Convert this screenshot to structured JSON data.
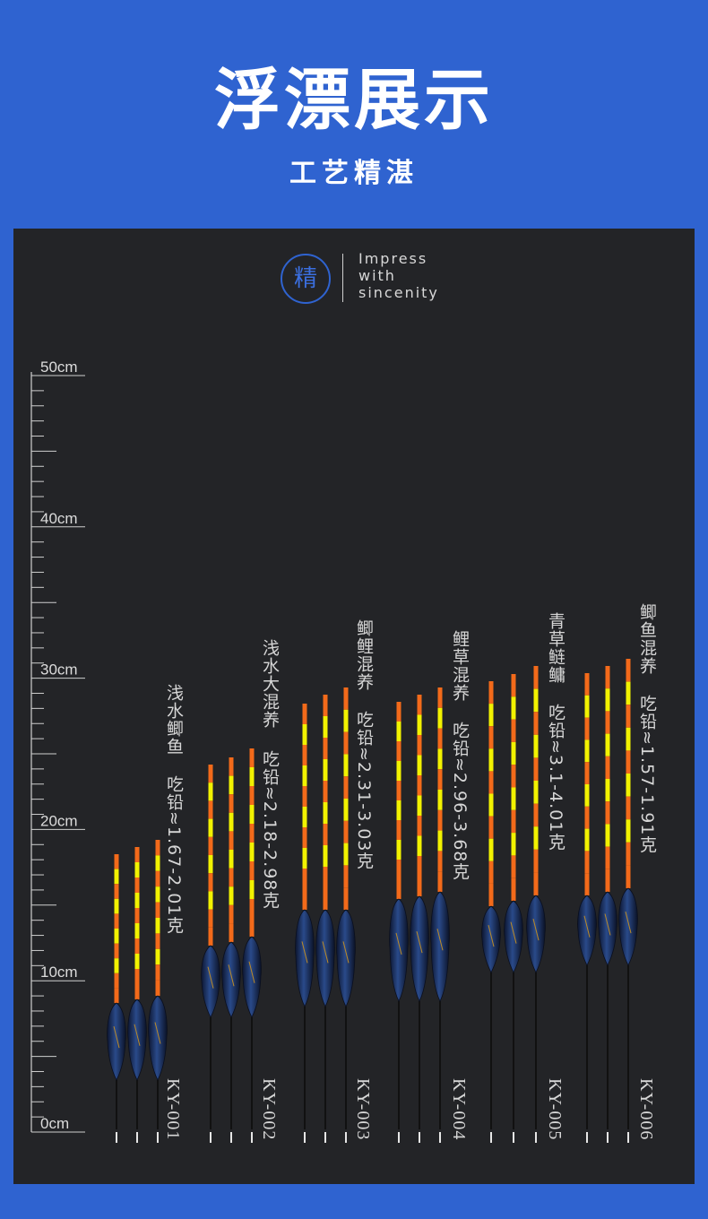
{
  "header": {
    "title": "浮漂展示",
    "subtitle": "工艺精湛"
  },
  "badge": {
    "char": "精",
    "line1": "Impress",
    "line2": "with",
    "line3": "sincenity"
  },
  "ruler": {
    "labels": [
      "50cm",
      "40cm",
      "30cm",
      "20cm",
      "10cm",
      "0cm"
    ]
  },
  "colors": {
    "background": "#2f63d0",
    "panel": "#232427",
    "tip_orange": "#f36a1a",
    "tip_yellow": "#f2f200",
    "body_navy": "#13203e"
  },
  "groups": [
    {
      "code": "KY-001",
      "name": "浅水鲫鱼",
      "weight": "吃铅≈1.67-2.01克"
    },
    {
      "code": "KY-002",
      "name": "浅水大混养",
      "weight": "吃铅≈2.18-2.98克"
    },
    {
      "code": "KY-003",
      "name": "鲫鲤混养",
      "weight": "吃铅≈2.31-3.03克"
    },
    {
      "code": "KY-004",
      "name": "鲤草混养",
      "weight": "吃铅≈2.96-3.68克"
    },
    {
      "code": "KY-005",
      "name": "青草鲢鳙",
      "weight": "吃铅≈3.1-4.01克"
    },
    {
      "code": "KY-006",
      "name": "鲫鱼混养",
      "weight": "吃铅≈1.57-1.91克"
    }
  ]
}
